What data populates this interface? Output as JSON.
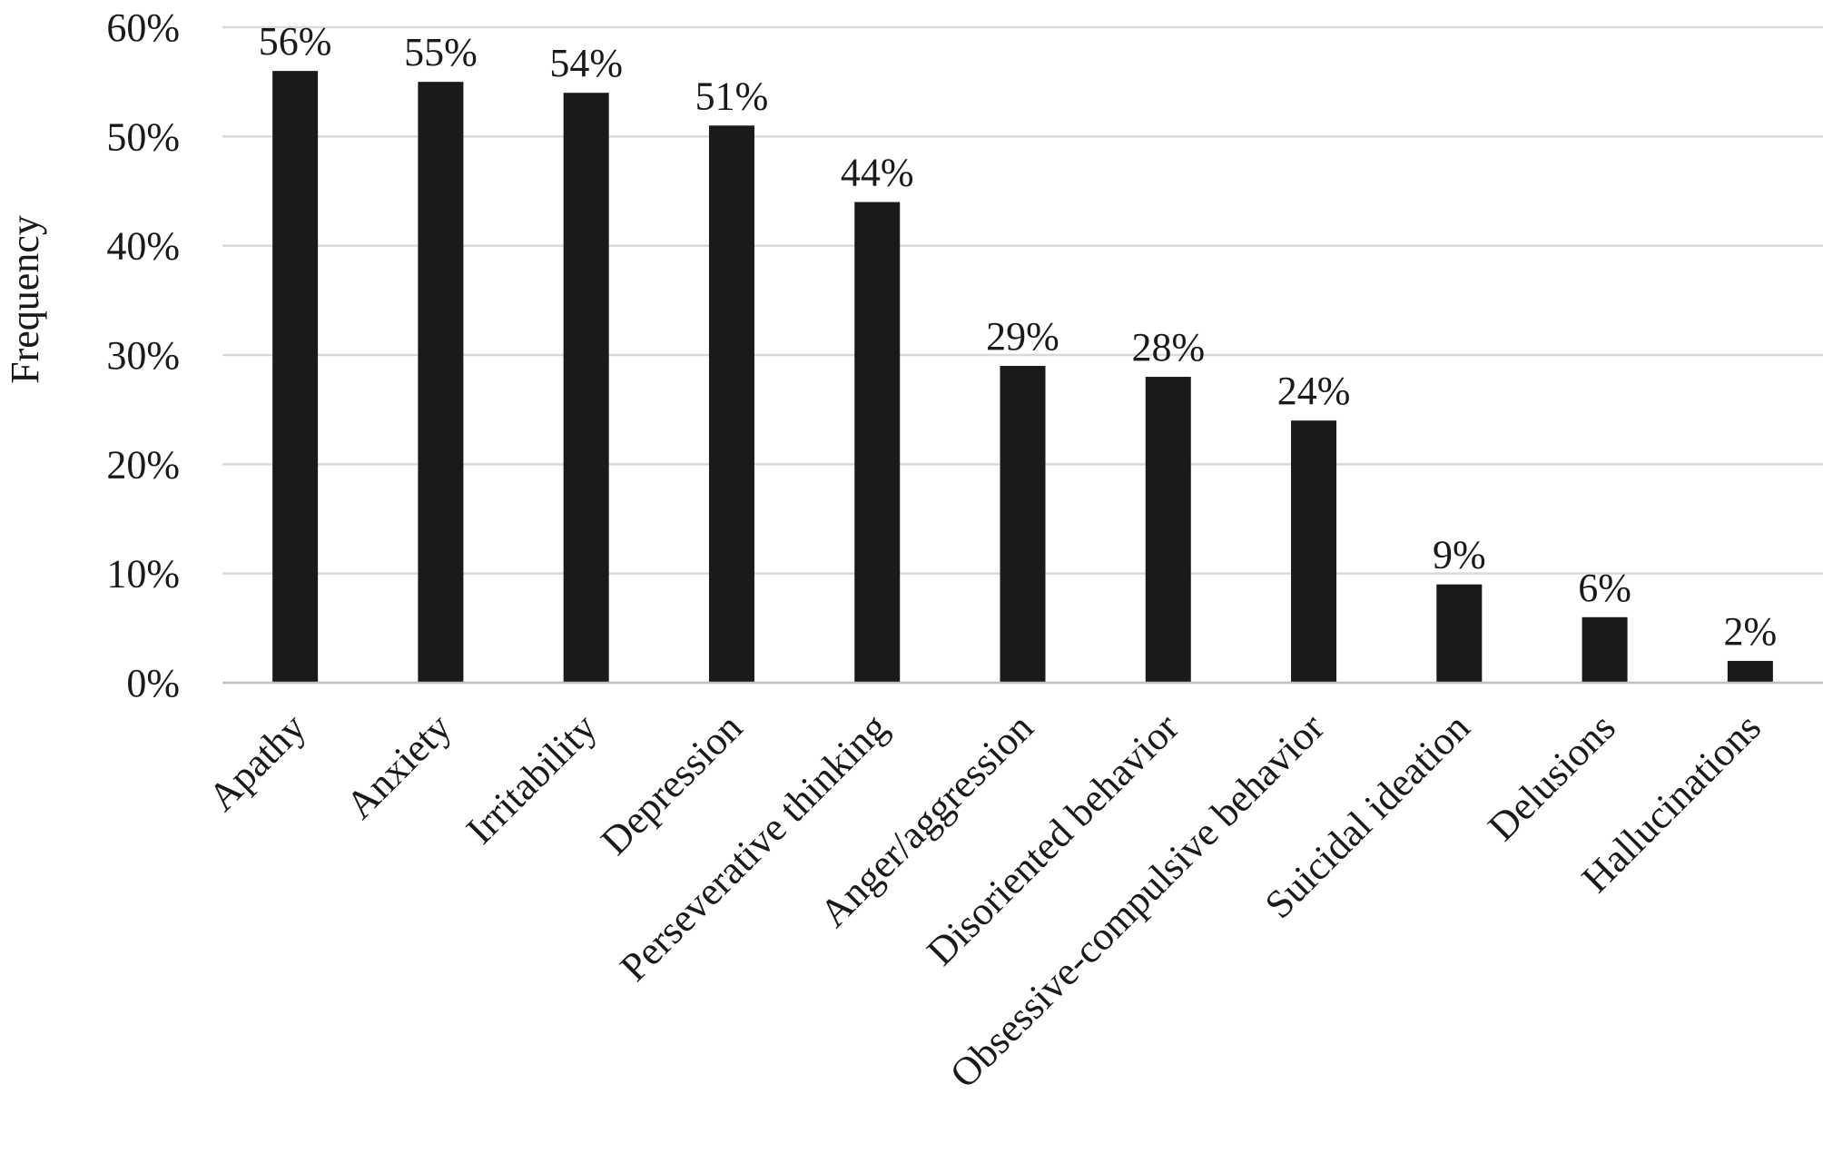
{
  "chart_data": {
    "type": "bar",
    "title": "",
    "xlabel": "",
    "ylabel": "Frequency",
    "ylim": [
      0,
      60
    ],
    "ytick_values": [
      0,
      10,
      20,
      30,
      40,
      50,
      60
    ],
    "ytick_labels": [
      "0%",
      "10%",
      "20%",
      "30%",
      "40%",
      "50%",
      "60%"
    ],
    "grid": true,
    "legend": "none",
    "bar_color": "#1a1a1a",
    "categories": [
      "Apathy",
      "Anxiety",
      "Irritability",
      "Depression",
      "Perseverative thinking",
      "Anger/aggression",
      "Disoriented behavior",
      "Obsessive-compulsive behavior",
      "Suicidal ideation",
      "Delusions",
      "Hallucinations"
    ],
    "values": [
      56,
      55,
      54,
      51,
      44,
      29,
      28,
      24,
      9,
      6,
      2
    ],
    "data_labels": [
      "56%",
      "55%",
      "54%",
      "51%",
      "44%",
      "29%",
      "28%",
      "24%",
      "9%",
      "6%",
      "2%"
    ]
  }
}
